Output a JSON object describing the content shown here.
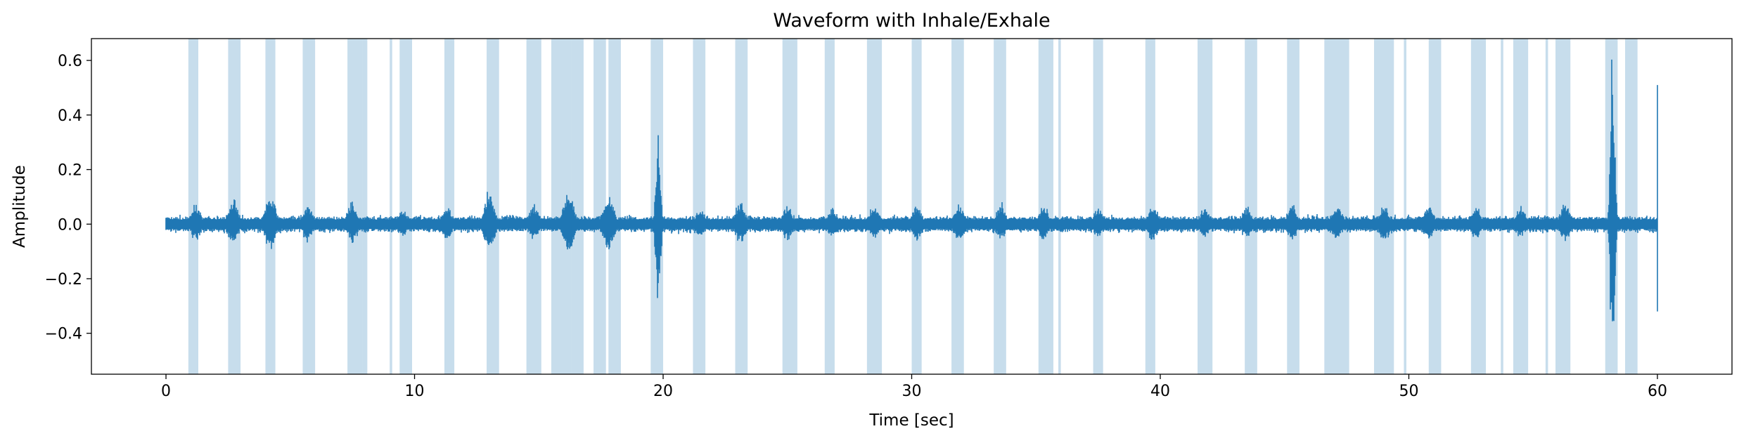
{
  "chart_data": {
    "type": "line",
    "title": "Waveform with Inhale/Exhale",
    "xlabel": "Time [sec]",
    "ylabel": "Amplitude",
    "xlim": [
      -3,
      63
    ],
    "ylim": [
      -0.55,
      0.68
    ],
    "grid": false,
    "legend": "none",
    "xticks": [
      {
        "value": 0,
        "label": "0"
      },
      {
        "value": 10,
        "label": "10"
      },
      {
        "value": 20,
        "label": "20"
      },
      {
        "value": 30,
        "label": "30"
      },
      {
        "value": 40,
        "label": "40"
      },
      {
        "value": 50,
        "label": "50"
      },
      {
        "value": 60,
        "label": "60"
      }
    ],
    "yticks": [
      {
        "value": -0.4,
        "label": "−0.4"
      },
      {
        "value": -0.2,
        "label": "−0.2"
      },
      {
        "value": 0.0,
        "label": "0.0"
      },
      {
        "value": 0.2,
        "label": "0.2"
      },
      {
        "value": 0.4,
        "label": "0.4"
      },
      {
        "value": 0.6,
        "label": "0.6"
      }
    ],
    "series": [
      {
        "color": "#1f77b4",
        "x_start": 0,
        "x_end": 60,
        "baseline_noise_amplitude": 0.03,
        "bursts": [
          {
            "t": 1.2,
            "amp": 0.07
          },
          {
            "t": 2.7,
            "amp": 0.09
          },
          {
            "t": 4.2,
            "amp": 0.11
          },
          {
            "t": 5.7,
            "amp": 0.07
          },
          {
            "t": 7.5,
            "amp": 0.08
          },
          {
            "t": 9.5,
            "amp": 0.06
          },
          {
            "t": 11.3,
            "amp": 0.07
          },
          {
            "t": 13.0,
            "amp": 0.12
          },
          {
            "t": 14.8,
            "amp": 0.07
          },
          {
            "t": 16.2,
            "amp": 0.13
          },
          {
            "t": 17.8,
            "amp": 0.12
          },
          {
            "t": 19.8,
            "amp": 0.33,
            "neg_amp": 0.32
          },
          {
            "t": 21.5,
            "amp": 0.06
          },
          {
            "t": 23.1,
            "amp": 0.08
          },
          {
            "t": 25.0,
            "amp": 0.07
          },
          {
            "t": 26.8,
            "amp": 0.06
          },
          {
            "t": 28.5,
            "amp": 0.07
          },
          {
            "t": 30.2,
            "amp": 0.07
          },
          {
            "t": 31.9,
            "amp": 0.08
          },
          {
            "t": 33.6,
            "amp": 0.07
          },
          {
            "t": 35.3,
            "amp": 0.07
          },
          {
            "t": 37.5,
            "amp": 0.06
          },
          {
            "t": 39.7,
            "amp": 0.07
          },
          {
            "t": 41.8,
            "amp": 0.06
          },
          {
            "t": 43.5,
            "amp": 0.06
          },
          {
            "t": 45.3,
            "amp": 0.07
          },
          {
            "t": 47.1,
            "amp": 0.07
          },
          {
            "t": 49.0,
            "amp": 0.07
          },
          {
            "t": 50.8,
            "amp": 0.07
          },
          {
            "t": 52.7,
            "amp": 0.07
          },
          {
            "t": 54.5,
            "amp": 0.06
          },
          {
            "t": 56.3,
            "amp": 0.08
          },
          {
            "t": 58.2,
            "amp": 0.62,
            "neg_amp": 0.5
          }
        ],
        "end_spike": {
          "t": 60.0,
          "max": 0.51,
          "min": -0.32
        }
      }
    ],
    "shaded_regions": [
      [
        0.9,
        1.3
      ],
      [
        2.5,
        3.0
      ],
      [
        4.0,
        4.4
      ],
      [
        5.5,
        6.0
      ],
      [
        7.3,
        7.9
      ],
      [
        7.9,
        8.1
      ],
      [
        9.0,
        9.1
      ],
      [
        9.4,
        9.9
      ],
      [
        11.2,
        11.6
      ],
      [
        12.9,
        13.4
      ],
      [
        14.5,
        15.1
      ],
      [
        15.5,
        16.3
      ],
      [
        16.3,
        16.8
      ],
      [
        17.2,
        17.7
      ],
      [
        17.8,
        18.3
      ],
      [
        19.5,
        20.0
      ],
      [
        21.2,
        21.7
      ],
      [
        22.9,
        23.4
      ],
      [
        24.8,
        25.4
      ],
      [
        26.5,
        26.9
      ],
      [
        28.2,
        28.8
      ],
      [
        30.0,
        30.4
      ],
      [
        31.6,
        32.1
      ],
      [
        33.3,
        33.8
      ],
      [
        35.1,
        35.7
      ],
      [
        35.9,
        36.0
      ],
      [
        37.3,
        37.7
      ],
      [
        39.4,
        39.8
      ],
      [
        41.5,
        42.1
      ],
      [
        43.4,
        43.9
      ],
      [
        45.1,
        45.6
      ],
      [
        46.6,
        47.6
      ],
      [
        48.6,
        49.4
      ],
      [
        49.8,
        49.9
      ],
      [
        50.8,
        51.3
      ],
      [
        52.5,
        53.1
      ],
      [
        53.7,
        53.8
      ],
      [
        54.2,
        54.8
      ],
      [
        55.5,
        55.6
      ],
      [
        55.9,
        56.5
      ],
      [
        57.9,
        58.4
      ],
      [
        58.7,
        59.2
      ]
    ],
    "shade_color": "#1f77b4",
    "shade_opacity": 0.25
  }
}
